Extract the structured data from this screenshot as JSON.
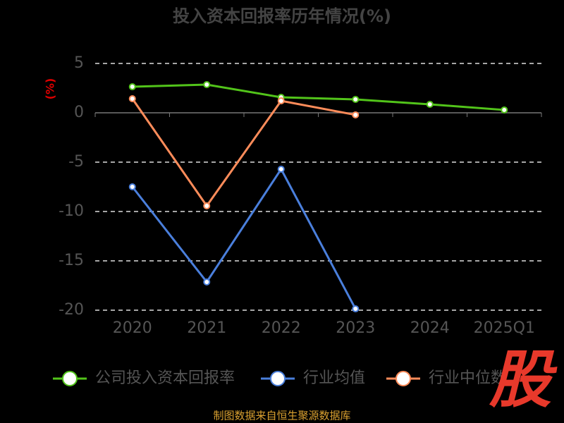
{
  "chart_data": {
    "type": "line",
    "title": "投入资本回报率历年情况(%)",
    "y_label": "(%)",
    "categories": [
      "2020",
      "2021",
      "2022",
      "2023",
      "2024",
      "2025Q1"
    ],
    "series": [
      {
        "name": "公司投入资本回报率",
        "color": "#52c41a",
        "values": [
          2.64,
          2.86,
          1.57,
          1.36,
          0.86,
          0.29
        ]
      },
      {
        "name": "行业均值",
        "color": "#4a7fdc",
        "values": [
          -7.5,
          -17.14,
          -5.71,
          -19.86,
          null,
          null
        ]
      },
      {
        "name": "行业中位数",
        "color": "#ff8c5a",
        "values": [
          1.43,
          -9.43,
          1.21,
          -0.21,
          null,
          null
        ]
      }
    ],
    "ylim": [
      -20,
      5
    ],
    "yticks": [
      5,
      0,
      -5,
      -10,
      -15,
      -20
    ],
    "grid": true,
    "source": "制图数据来自恒生聚源数据库",
    "watermark": "股"
  }
}
